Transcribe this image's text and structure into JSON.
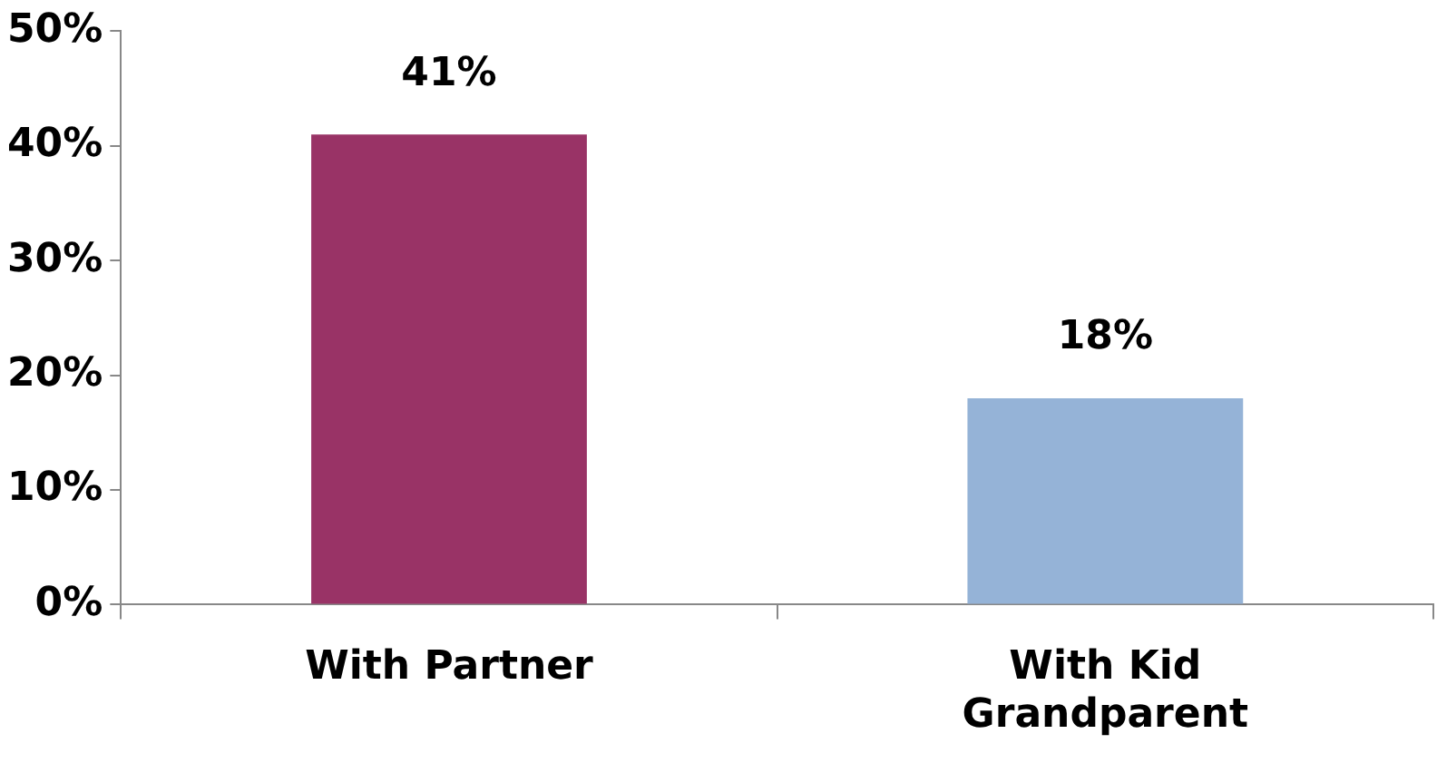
{
  "chart_data": {
    "type": "bar",
    "categories": [
      "With Partner",
      "With Kid Grandparent"
    ],
    "values": [
      41,
      18
    ],
    "colors": [
      "#993366",
      "#95b3d7"
    ],
    "value_labels": [
      "41%",
      "18%"
    ],
    "ylim": [
      0,
      50
    ],
    "yticks": [
      {
        "value": 0,
        "label": "0%"
      },
      {
        "value": 10,
        "label": "10%"
      },
      {
        "value": 20,
        "label": "20%"
      },
      {
        "value": 30,
        "label": "30%"
      },
      {
        "value": 40,
        "label": "40%"
      },
      {
        "value": 50,
        "label": "50%"
      }
    ],
    "grid": false,
    "legend": false
  }
}
